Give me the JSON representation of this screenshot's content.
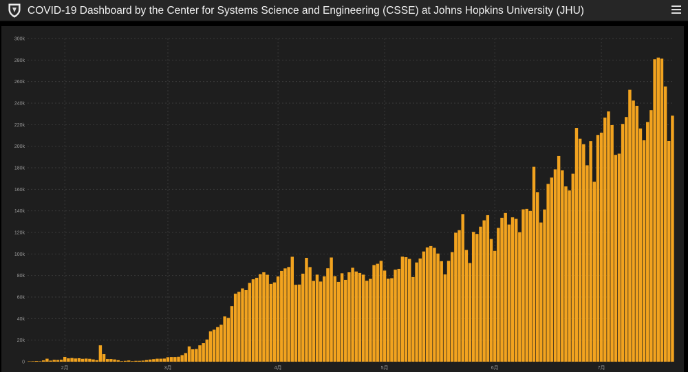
{
  "header": {
    "title": "COVID-19 Dashboard by the Center for Systems Science and Engineering (CSSE) at Johns Hopkins University (JHU)",
    "logo_icon": "jhu-shield-icon",
    "menu_icon": "hamburger-menu-icon"
  },
  "colors": {
    "background": "#000000",
    "header_bg": "#262626",
    "panel_bg": "#1e1e1e",
    "bar": "#f2a31f",
    "grid": "#3a3a3a",
    "tick_text": "#9a9a9a"
  },
  "chart_data": {
    "type": "bar",
    "title": "",
    "xlabel": "",
    "ylabel": "",
    "ylim": [
      0,
      300000
    ],
    "yticks": [
      {
        "value": 0,
        "label": "0"
      },
      {
        "value": 20000,
        "label": "20k"
      },
      {
        "value": 40000,
        "label": "40k"
      },
      {
        "value": 60000,
        "label": "60k"
      },
      {
        "value": 80000,
        "label": "80k"
      },
      {
        "value": 100000,
        "label": "100k"
      },
      {
        "value": 120000,
        "label": "120k"
      },
      {
        "value": 140000,
        "label": "140k"
      },
      {
        "value": 160000,
        "label": "160k"
      },
      {
        "value": 180000,
        "label": "180k"
      },
      {
        "value": 200000,
        "label": "200k"
      },
      {
        "value": 220000,
        "label": "220k"
      },
      {
        "value": 240000,
        "label": "240k"
      },
      {
        "value": 260000,
        "label": "260k"
      },
      {
        "value": 280000,
        "label": "280k"
      },
      {
        "value": 300000,
        "label": "300k"
      }
    ],
    "xticks": [
      {
        "index": 10,
        "label": "2月"
      },
      {
        "index": 39,
        "label": "3月"
      },
      {
        "index": 70,
        "label": "4月"
      },
      {
        "index": 100,
        "label": "5月"
      },
      {
        "index": 131,
        "label": "6月"
      },
      {
        "index": 161,
        "label": "7月"
      }
    ],
    "grid": true,
    "legend": "none",
    "series": [
      {
        "values": [
          300,
          400,
          600,
          400,
          1200,
          2800,
          1000,
          1700,
          1600,
          1800,
          4500,
          3100,
          3400,
          3000,
          3200,
          2700,
          2900,
          2700,
          2100,
          1400,
          15200,
          7000,
          2500,
          2500,
          2100,
          1400,
          500,
          800,
          1100,
          500,
          800,
          800,
          1000,
          1500,
          2000,
          2400,
          2800,
          2800,
          2900,
          4200,
          4400,
          4400,
          4600,
          6100,
          8000,
          14200,
          11500,
          11800,
          15200,
          17200,
          20600,
          28200,
          29700,
          32100,
          34300,
          42000,
          40700,
          51600,
          63100,
          64800,
          68000,
          66400,
          73100,
          76500,
          77900,
          81200,
          83000,
          80700,
          72200,
          73600,
          79100,
          84300,
          86600,
          87900,
          97400,
          71400,
          71600,
          81700,
          96400,
          87800,
          75000,
          80800,
          74400,
          79200,
          86700,
          96700,
          79400,
          74100,
          82100,
          76000,
          83000,
          87200,
          83700,
          82400,
          80800,
          75100,
          76900,
          89700,
          90900,
          93600,
          84600,
          77000,
          77500,
          85400,
          86200,
          97500,
          97000,
          95400,
          78600,
          92100,
          95800,
          102300,
          106100,
          107300,
          105700,
          100400,
          93300,
          81000,
          93600,
          101700,
          119700,
          122100,
          137000,
          103700,
          91600,
          120500,
          118600,
          125300,
          131200,
          136000,
          113900,
          102900,
          124200,
          133500,
          138000,
          127300,
          134000,
          132700,
          120200,
          141400,
          141800,
          139900,
          180900,
          157400,
          129200,
          141300,
          165000,
          170900,
          178500,
          190900,
          177700,
          162700,
          159000,
          174500,
          217000,
          207000,
          201900,
          182300,
          204800,
          167000,
          210500,
          212600,
          226600,
          232300,
          219600,
          192000,
          193100,
          220700,
          227100,
          252400,
          242400,
          237500,
          216500,
          205500,
          222500,
          233500,
          280700,
          282300,
          281300,
          255500,
          204900,
          228400
        ]
      }
    ]
  }
}
